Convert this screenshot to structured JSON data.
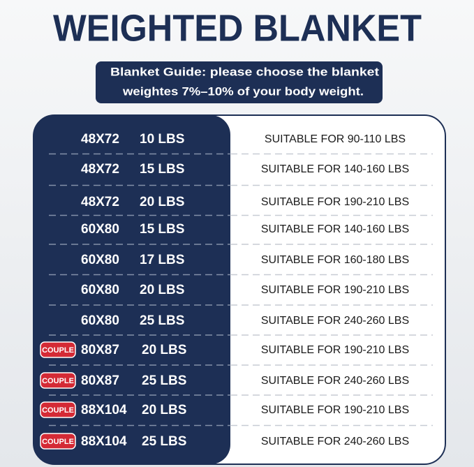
{
  "title": "WEIGHTED BLANKET",
  "guide": [
    "Blanket Guide: please choose the blanket",
    "weightes 7%–10% of your body weight."
  ],
  "rows": [
    {
      "size": "48X72",
      "weight": "10 LBS",
      "suitable": "SUITABLE FOR 90-110 LBS"
    },
    {
      "size": "48X72",
      "weight": "15 LBS",
      "suitable": "SUITABLE FOR 140-160 LBS"
    },
    {
      "size": "48X72",
      "weight": "20 LBS",
      "suitable": "SUITABLE FOR 190-210 LBS"
    },
    {
      "size": "60X80",
      "weight": "15 LBS",
      "suitable": "SUITABLE FOR 140-160 LBS"
    },
    {
      "size": "60X80",
      "weight": "17 LBS",
      "suitable": "SUITABLE FOR 160-180 LBS"
    },
    {
      "size": "60X80",
      "weight": "20 LBS",
      "suitable": "SUITABLE FOR 190-210 LBS"
    },
    {
      "size": "60X80",
      "weight": "25 LBS",
      "suitable": "SUITABLE FOR 240-260 LBS"
    },
    {
      "badge": "COUPLE",
      "size": "80X87",
      "weight": "20 LBS",
      "suitable": "SUITABLE FOR 190-210 LBS"
    },
    {
      "badge": "COUPLE",
      "size": "80X87",
      "weight": "25 LBS",
      "suitable": "SUITABLE FOR 240-260 LBS"
    },
    {
      "badge": "COUPLE",
      "size": "88X104",
      "weight": "20 LBS",
      "suitable": "SUITABLE FOR 190-210 LBS"
    },
    {
      "badge": "COUPLE",
      "size": "88X104",
      "weight": "25 LBS",
      "suitable": "SUITABLE FOR 240-260 LBS"
    }
  ]
}
